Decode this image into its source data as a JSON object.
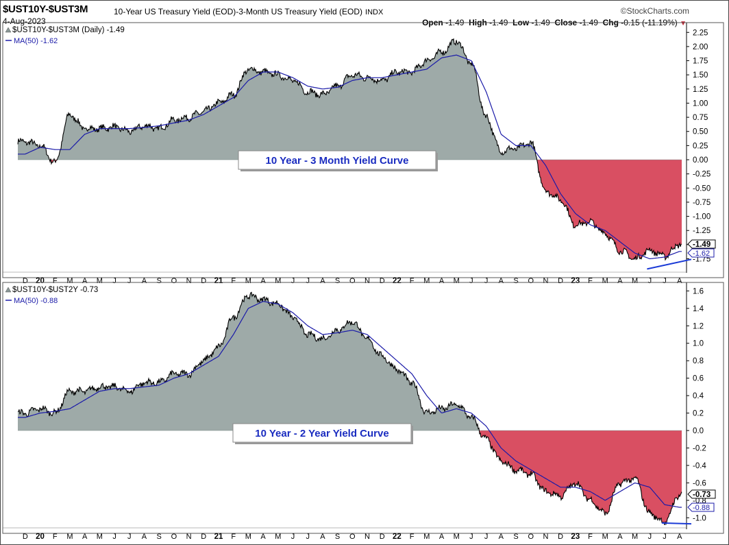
{
  "header": {
    "symbol": "$UST10Y-$UST3M",
    "description": "10-Year US Treasury Yield (EOD)-3-Month US Treasury Yield (EOD)",
    "exchange": "INDX",
    "date": "4-Aug-2023",
    "brand": "©StockCharts.com",
    "open_label": "Open",
    "open": "-1.49",
    "high_label": "High",
    "high": "-1.49",
    "low_label": "Low",
    "low": "-1.49",
    "close_label": "Close",
    "close": "-1.49",
    "chg_label": "Chg",
    "chg": "-0.15 (-11.19%)",
    "chg_arrow": "▼"
  },
  "colors": {
    "area_positive": "#9eaaa8",
    "area_negative": "#d94f62",
    "ma_line": "#1a1aa8",
    "trend_line": "#1a3ad6",
    "box_text": "#1a2cc0",
    "price_line": "#000000"
  },
  "month_axis": {
    "labels": [
      "D",
      "20",
      "F",
      "M",
      "A",
      "M",
      "J",
      "J",
      "A",
      "S",
      "O",
      "N",
      "D",
      "21",
      "F",
      "M",
      "A",
      "M",
      "J",
      "J",
      "A",
      "S",
      "O",
      "N",
      "D",
      "22",
      "F",
      "M",
      "A",
      "M",
      "J",
      "J",
      "A",
      "S",
      "O",
      "N",
      "D",
      "23",
      "F",
      "M",
      "A",
      "M",
      "J",
      "J",
      "A"
    ],
    "year_labels": [
      "20",
      "21",
      "22",
      "23"
    ]
  },
  "chart_data": [
    {
      "type": "area",
      "series_label": "$UST10Y-$UST3M (Daily) -1.49",
      "ma_label": "MA(50) -1.62",
      "annotation": "10 Year - 3 Month Yield Curve",
      "last_value_tag": "-1.49",
      "ma_value_tag": "-1.62",
      "x_range": [
        "2019-12",
        "2023-08-04"
      ],
      "ylim": [
        -1.95,
        2.35
      ],
      "yticks": [
        "2.25",
        "2.00",
        "1.75",
        "1.50",
        "1.25",
        "1.00",
        "0.75",
        "0.50",
        "0.25",
        "0.00",
        "-0.25",
        "-0.50",
        "-0.75",
        "-1.00",
        "-1.25",
        "-1.50",
        "-1.75"
      ],
      "ytick_values": [
        2.25,
        2.0,
        1.75,
        1.5,
        1.25,
        1.0,
        0.75,
        0.5,
        0.25,
        0.0,
        -0.25,
        -0.5,
        -0.75,
        -1.0,
        -1.25,
        -1.5,
        -1.75
      ],
      "x": [
        "2019-12",
        "2020-01",
        "2020-02",
        "2020-03",
        "2020-04",
        "2020-05",
        "2020-06",
        "2020-07",
        "2020-08",
        "2020-09",
        "2020-10",
        "2020-11",
        "2020-12",
        "2021-01",
        "2021-02",
        "2021-03",
        "2021-04",
        "2021-05",
        "2021-06",
        "2021-07",
        "2021-08",
        "2021-09",
        "2021-10",
        "2021-11",
        "2021-12",
        "2022-01",
        "2022-02",
        "2022-03",
        "2022-04",
        "2022-05",
        "2022-06",
        "2022-07",
        "2022-08",
        "2022-09",
        "2022-10",
        "2022-11",
        "2022-12",
        "2023-01",
        "2023-02",
        "2023-03",
        "2023-04",
        "2023-05",
        "2023-06",
        "2023-07",
        "2023-08"
      ],
      "values": [
        0.32,
        0.25,
        -0.05,
        0.8,
        0.55,
        0.55,
        0.58,
        0.5,
        0.6,
        0.55,
        0.7,
        0.75,
        0.85,
        1.0,
        1.15,
        1.6,
        1.55,
        1.5,
        1.4,
        1.2,
        1.15,
        1.3,
        1.5,
        1.45,
        1.4,
        1.55,
        1.55,
        1.75,
        1.9,
        2.1,
        1.7,
        0.75,
        0.15,
        0.2,
        0.3,
        -0.55,
        -0.7,
        -1.15,
        -1.1,
        -1.3,
        -1.6,
        -1.75,
        -1.6,
        -1.7,
        -1.49
      ],
      "ma_values": [
        0.1,
        0.22,
        0.18,
        0.18,
        0.45,
        0.55,
        0.55,
        0.55,
        0.57,
        0.6,
        0.65,
        0.7,
        0.8,
        0.95,
        1.1,
        1.4,
        1.55,
        1.55,
        1.45,
        1.3,
        1.25,
        1.28,
        1.4,
        1.45,
        1.45,
        1.5,
        1.55,
        1.6,
        1.8,
        1.85,
        1.75,
        1.2,
        0.45,
        0.25,
        0.25,
        -0.1,
        -0.6,
        -0.95,
        -1.15,
        -1.25,
        -1.45,
        -1.65,
        -1.75,
        -1.72,
        -1.62
      ]
    },
    {
      "type": "area",
      "series_label": "$UST10Y-$UST2Y -0.73",
      "ma_label": "MA(50) -0.88",
      "annotation": "10 Year - 2 Year Yield Curve",
      "last_value_tag": "-0.73",
      "ma_value_tag": "-0.88",
      "x_range": [
        "2019-12",
        "2023-08-04"
      ],
      "ylim": [
        -1.1,
        1.65
      ],
      "yticks": [
        "1.6",
        "1.4",
        "1.2",
        "1.0",
        "0.8",
        "0.6",
        "0.4",
        "0.2",
        "0.0",
        "-0.2",
        "-0.4",
        "-0.6",
        "-0.8",
        "-1.0"
      ],
      "ytick_values": [
        1.6,
        1.4,
        1.2,
        1.0,
        0.8,
        0.6,
        0.4,
        0.2,
        0.0,
        -0.2,
        -0.4,
        -0.6,
        -0.8,
        -1.0
      ],
      "x": [
        "2019-12",
        "2020-01",
        "2020-02",
        "2020-03",
        "2020-04",
        "2020-05",
        "2020-06",
        "2020-07",
        "2020-08",
        "2020-09",
        "2020-10",
        "2020-11",
        "2020-12",
        "2021-01",
        "2021-02",
        "2021-03",
        "2021-04",
        "2021-05",
        "2021-06",
        "2021-07",
        "2021-08",
        "2021-09",
        "2021-10",
        "2021-11",
        "2021-12",
        "2022-01",
        "2022-02",
        "2022-03",
        "2022-04",
        "2022-05",
        "2022-06",
        "2022-07",
        "2022-08",
        "2022-09",
        "2022-10",
        "2022-11",
        "2022-12",
        "2023-01",
        "2023-02",
        "2023-03",
        "2023-04",
        "2023-05",
        "2023-06",
        "2023-07",
        "2023-08"
      ],
      "values": [
        0.2,
        0.25,
        0.2,
        0.45,
        0.45,
        0.5,
        0.5,
        0.45,
        0.55,
        0.55,
        0.65,
        0.65,
        0.8,
        0.95,
        1.3,
        1.55,
        1.5,
        1.45,
        1.3,
        1.1,
        1.05,
        1.15,
        1.25,
        1.05,
        0.85,
        0.7,
        0.55,
        0.2,
        0.25,
        0.3,
        0.15,
        -0.1,
        -0.35,
        -0.45,
        -0.5,
        -0.7,
        -0.75,
        -0.6,
        -0.8,
        -0.95,
        -0.6,
        -0.55,
        -0.95,
        -1.05,
        -0.73
      ],
      "ma_values": [
        0.15,
        0.2,
        0.22,
        0.25,
        0.35,
        0.45,
        0.48,
        0.48,
        0.5,
        0.52,
        0.6,
        0.65,
        0.75,
        0.85,
        1.1,
        1.4,
        1.48,
        1.45,
        1.35,
        1.2,
        1.1,
        1.12,
        1.15,
        1.1,
        0.95,
        0.8,
        0.65,
        0.4,
        0.2,
        0.25,
        0.2,
        0.05,
        -0.2,
        -0.35,
        -0.45,
        -0.55,
        -0.65,
        -0.65,
        -0.7,
        -0.8,
        -0.7,
        -0.6,
        -0.65,
        -0.85,
        -0.88
      ]
    }
  ]
}
